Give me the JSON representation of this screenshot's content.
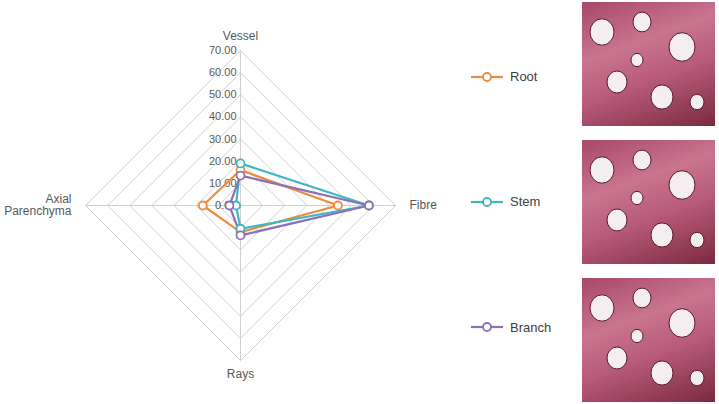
{
  "chart_data": {
    "type": "radar",
    "categories": [
      "Vessel",
      "Fibre",
      "Rays",
      "Axial Parenchyma"
    ],
    "series": [
      {
        "name": "Root",
        "color": "#ED8B3F",
        "values": [
          16,
          44,
          12,
          17
        ]
      },
      {
        "name": "Stem",
        "color": "#3FB6C2",
        "values": [
          19,
          58,
          10.5,
          2
        ]
      },
      {
        "name": "Branch",
        "color": "#8A72B8",
        "values": [
          13.5,
          58,
          13.5,
          5
        ]
      }
    ],
    "ylim": [
      0,
      70
    ],
    "yticks": [
      {
        "value": 0,
        "label": "0.00"
      },
      {
        "value": 10,
        "label": "10.00"
      },
      {
        "value": 20,
        "label": "20.00"
      },
      {
        "value": 30,
        "label": "30.00"
      },
      {
        "value": 40,
        "label": "40.00"
      },
      {
        "value": 50,
        "label": "50.00"
      },
      {
        "value": 60,
        "label": "60.00"
      },
      {
        "value": 70,
        "label": "70.00"
      }
    ],
    "grid": true,
    "legend": "right",
    "marker": "circle"
  }
}
